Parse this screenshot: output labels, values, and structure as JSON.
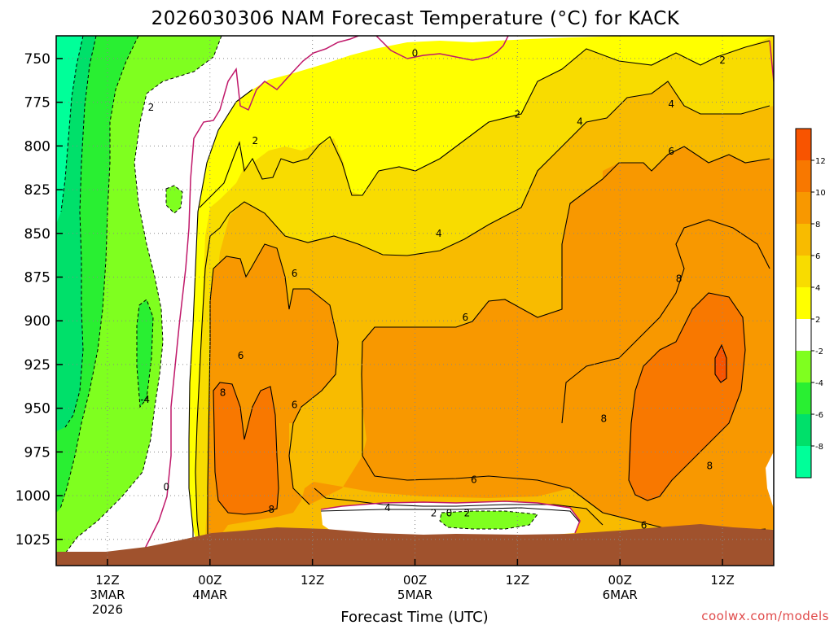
{
  "title": "2026030306 NAM Forecast Temperature (°C) for KACK",
  "xlabel": "Forecast Time (UTC)",
  "credit": "coolwx.com/models",
  "colors": {
    "t_m8": "#00ff99",
    "t_m6": "#00e06a",
    "t_m4": "#29ef32",
    "t_m2": "#7fff1f",
    "t_0": "#ffffff",
    "t_2": "#ffff00",
    "t_4": "#f8dc00",
    "t_6": "#f8bb00",
    "t_8": "#f89800",
    "t_10": "#f87800",
    "t_12": "#f85400",
    "ground": "#a0522d",
    "zero_contour": "#c0186a"
  },
  "chart_data": {
    "type": "heatmap",
    "x_axis": {
      "ticks": [
        {
          "label": "12Z",
          "sub": [
            "3MAR",
            "2026"
          ],
          "hour": 6
        },
        {
          "label": "00Z",
          "sub": [
            "4MAR"
          ],
          "hour": 18
        },
        {
          "label": "12Z",
          "sub": [],
          "hour": 30
        },
        {
          "label": "00Z",
          "sub": [
            "5MAR"
          ],
          "hour": 42
        },
        {
          "label": "12Z",
          "sub": [],
          "hour": 54
        },
        {
          "label": "00Z",
          "sub": [
            "6MAR"
          ],
          "hour": 66
        },
        {
          "label": "12Z",
          "sub": [],
          "hour": 78
        }
      ],
      "range_hours": [
        0,
        84
      ]
    },
    "y_axis": {
      "ticks": [
        750,
        775,
        800,
        825,
        850,
        875,
        900,
        925,
        950,
        975,
        1000,
        1025
      ],
      "range_hpa": [
        737,
        1040
      ],
      "inverted": true
    },
    "colorbar": {
      "labels": [
        "12",
        "10",
        "8",
        "6",
        "4",
        "2",
        "-2",
        "-4",
        "-6",
        "-8"
      ]
    },
    "contour_labels": [
      {
        "text": "0",
        "hour": 42.0,
        "hpa": 747
      },
      {
        "text": "2",
        "hour": 78.0,
        "hpa": 751
      },
      {
        "text": "2",
        "hour": 11.1,
        "hpa": 778
      },
      {
        "text": "2",
        "hour": 54.0,
        "hpa": 782
      },
      {
        "text": "4",
        "hour": 61.3,
        "hpa": 786
      },
      {
        "text": "4",
        "hour": 72.0,
        "hpa": 776
      },
      {
        "text": "2",
        "hour": 23.3,
        "hpa": 797
      },
      {
        "text": "6",
        "hour": 72.0,
        "hpa": 803
      },
      {
        "text": "4",
        "hour": 44.8,
        "hpa": 850
      },
      {
        "text": "6",
        "hour": 27.9,
        "hpa": 873
      },
      {
        "text": "8",
        "hour": 72.9,
        "hpa": 876
      },
      {
        "text": "6",
        "hour": 47.9,
        "hpa": 898
      },
      {
        "text": "6",
        "hour": 21.6,
        "hpa": 920
      },
      {
        "text": "8",
        "hour": 19.5,
        "hpa": 941
      },
      {
        "text": "-4",
        "hour": 10.4,
        "hpa": 945
      },
      {
        "text": "6",
        "hour": 27.9,
        "hpa": 948
      },
      {
        "text": "8",
        "hour": 64.1,
        "hpa": 956
      },
      {
        "text": "8",
        "hour": 76.5,
        "hpa": 983
      },
      {
        "text": "6",
        "hour": 48.9,
        "hpa": 991
      },
      {
        "text": "0",
        "hour": 12.9,
        "hpa": 995
      },
      {
        "text": "8",
        "hour": 25.2,
        "hpa": 1008
      },
      {
        "text": "4",
        "hour": 38.8,
        "hpa": 1007
      },
      {
        "text": "2",
        "hour": 44.2,
        "hpa": 1010
      },
      {
        "text": "0",
        "hour": 46.0,
        "hpa": 1010
      },
      {
        "text": "2",
        "hour": 48.1,
        "hpa": 1010
      },
      {
        "text": "6",
        "hour": 68.8,
        "hpa": 1017
      }
    ]
  }
}
